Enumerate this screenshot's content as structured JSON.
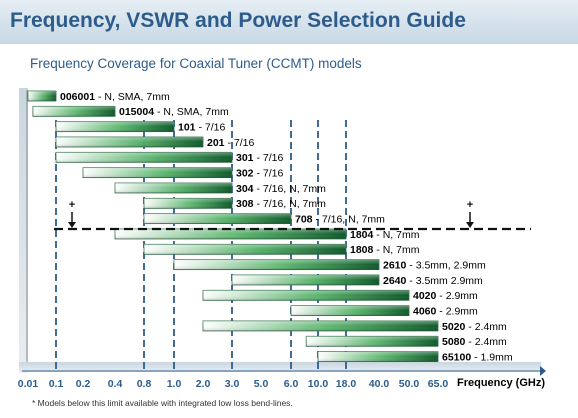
{
  "header": {
    "title": "Frequency, VSWR and Power Selection Guide"
  },
  "footnote": "* Models below this limit available with integrated low loss bend-lines.",
  "colors": {
    "title": "#2d5c8c",
    "bar_dark": "#0d5a2a",
    "bar_mid": "#2f9a4f",
    "bar_light": "#ffffff",
    "axis": "#2d5c8c",
    "guide": "#2d5c8c"
  },
  "chart_data": {
    "type": "bar",
    "orientation": "horizontal",
    "title": "Frequency Coverage for Coaxial Tuner (CCMT) models",
    "xlabel": "Frequency (GHz)",
    "xscale": "piecewise-log",
    "xticks": [
      "0.01",
      "0.1",
      "0.2",
      "0.4",
      "0.8",
      "1.0",
      "2.0",
      "3.0",
      "5.0",
      "6.0",
      "10.0",
      "18.0",
      "40.0",
      "50.0",
      "65.0"
    ],
    "guide_lines_at": [
      "0.1",
      "0.8",
      "1.0",
      "3.0",
      "6.0",
      "10.0",
      "18.0"
    ],
    "limit_line_between": [
      "708",
      "1804"
    ],
    "limit_markers": [
      "+",
      "+"
    ],
    "series": [
      {
        "model": "006001",
        "desc": " - N, SMA, 7mm",
        "min": "0.01",
        "max": "0.1"
      },
      {
        "model": "015004",
        "desc": " - N, SMA, 7mm",
        "min": "0.015",
        "max": "0.4"
      },
      {
        "model": "101",
        "desc": " - 7/16",
        "min": "0.1",
        "max": "1.0"
      },
      {
        "model": "201",
        "desc": " - 7/16",
        "min": "0.1",
        "max": "2.0"
      },
      {
        "model": "301",
        "desc": " - 7/16",
        "min": "0.1",
        "max": "3.0"
      },
      {
        "model": "302",
        "desc": " - 7/16",
        "min": "0.2",
        "max": "3.0"
      },
      {
        "model": "304",
        "desc": " - 7/16, N, 7mm",
        "min": "0.4",
        "max": "3.0"
      },
      {
        "model": "308",
        "desc": " - 7/16, N, 7mm",
        "min": "0.8",
        "max": "3.0"
      },
      {
        "model": "708",
        "desc": " - 7/16, N, 7mm",
        "min": "0.8",
        "max": "6.0"
      },
      {
        "model": "1804",
        "desc": " - N, 7mm",
        "min": "0.4",
        "max": "18.0"
      },
      {
        "model": "1808",
        "desc": " - N, 7mm",
        "min": "0.8",
        "max": "18.0"
      },
      {
        "model": "2610",
        "desc": " - 3.5mm, 2.9mm",
        "min": "1.0",
        "max": "40.0"
      },
      {
        "model": "2640",
        "desc": " - 3.5mm 2.9mm",
        "min": "3.0",
        "max": "40.0"
      },
      {
        "model": "4020",
        "desc": " - 2.9mm",
        "min": "2.0",
        "max": "50.0"
      },
      {
        "model": "4060",
        "desc": " - 2.9mm",
        "min": "6.0",
        "max": "50.0"
      },
      {
        "model": "5020",
        "desc": " - 2.4mm",
        "min": "2.0",
        "max": "65.0"
      },
      {
        "model": "5080",
        "desc": " - 2.4mm",
        "min": "8.0",
        "max": "65.0"
      },
      {
        "model": "65100",
        "desc": " - 1.9mm",
        "min": "10.0",
        "max": "65.0"
      }
    ]
  }
}
